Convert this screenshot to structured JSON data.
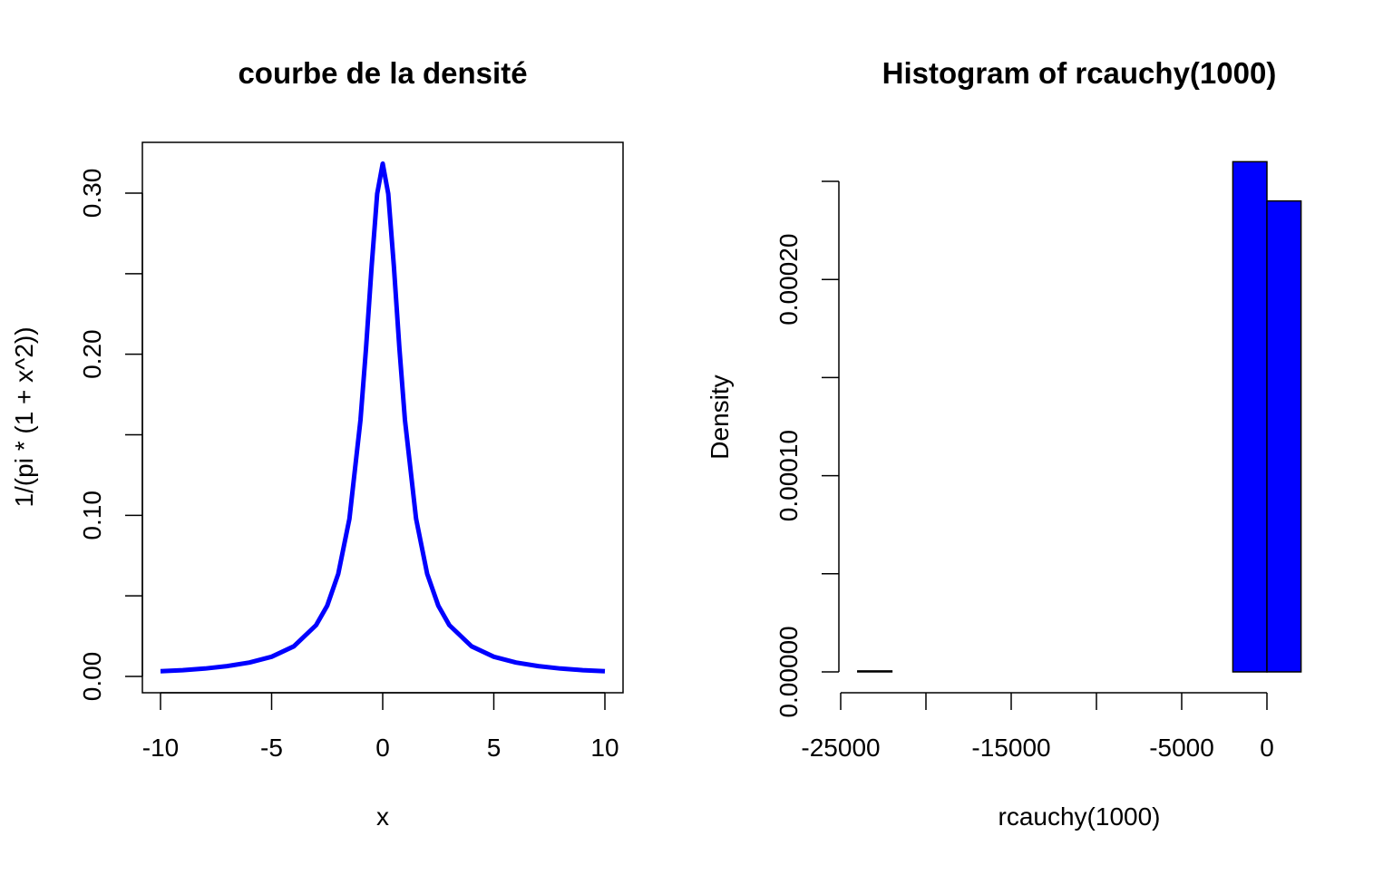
{
  "colors": {
    "series": "#0000ff",
    "axis": "#000000",
    "background": "#ffffff"
  },
  "chart_data": [
    {
      "type": "line",
      "title": "courbe de la densité",
      "xlabel": "x",
      "ylabel": "1/(pi * (1 + x^2))",
      "xlim": [
        -10,
        10
      ],
      "ylim": [
        0,
        0.318
      ],
      "xticks": [
        -10,
        -5,
        0,
        5,
        10
      ],
      "xtick_labels": [
        "-10",
        "-5",
        "0",
        "5",
        "10"
      ],
      "yticks": [
        0.0,
        0.05,
        0.1,
        0.15,
        0.2,
        0.25,
        0.3
      ],
      "ytick_labels": [
        "0.00",
        "",
        "0.10",
        "",
        "0.20",
        "",
        "0.30"
      ],
      "grid": false,
      "series": [
        {
          "x": [
            -10,
            -9,
            -8,
            -7,
            -6,
            -5,
            -4,
            -3,
            -2.5,
            -2,
            -1.5,
            -1,
            -0.75,
            -0.5,
            -0.25,
            0,
            0.25,
            0.5,
            0.75,
            1,
            1.5,
            2,
            2.5,
            3,
            4,
            5,
            6,
            7,
            8,
            9,
            10
          ],
          "y": [
            0.0032,
            0.0039,
            0.0049,
            0.0064,
            0.0086,
            0.0122,
            0.0187,
            0.0318,
            0.0439,
            0.0637,
            0.0979,
            0.1592,
            0.2037,
            0.2546,
            0.2996,
            0.3183,
            0.2996,
            0.2546,
            0.2037,
            0.1592,
            0.0979,
            0.0637,
            0.0439,
            0.0318,
            0.0187,
            0.0122,
            0.0086,
            0.0064,
            0.0049,
            0.0039,
            0.0032
          ],
          "color": "#0000ff"
        }
      ]
    },
    {
      "type": "bar",
      "title": "Histogram of rcauchy(1000)",
      "xlabel": "rcauchy(1000)",
      "ylabel": "Density",
      "xlim": [
        -25500,
        2000
      ],
      "ylim": [
        0,
        0.00026
      ],
      "xticks": [
        -25000,
        -20000,
        -15000,
        -10000,
        -5000,
        0
      ],
      "xtick_labels": [
        "-25000",
        "",
        "-15000",
        "",
        "-5000",
        "0"
      ],
      "yticks": [
        0,
        5e-05,
        0.0001,
        0.00015,
        0.0002,
        0.00025
      ],
      "ytick_labels": [
        "0.00000",
        "",
        "0.00010",
        "",
        "0.00020",
        ""
      ],
      "grid": false,
      "bins": [
        {
          "x0": -24000,
          "x1": -22000,
          "value": 5e-07
        },
        {
          "x0": -22000,
          "x1": -2000,
          "value": 0
        },
        {
          "x0": -2000,
          "x1": 0,
          "value": 0.00026
        },
        {
          "x0": 0,
          "x1": 2000,
          "value": 0.00024
        }
      ],
      "color": "#0000ff"
    }
  ]
}
